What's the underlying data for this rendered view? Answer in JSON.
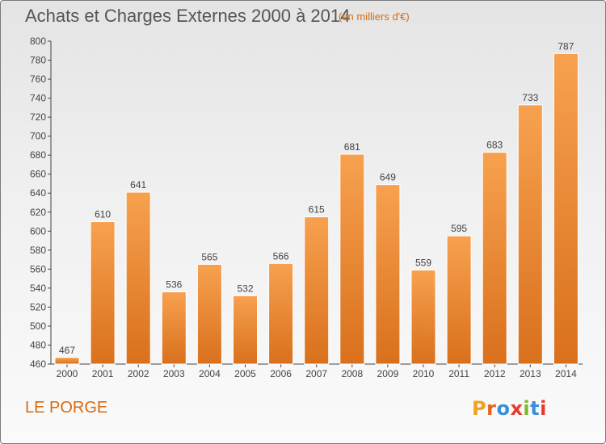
{
  "header": {
    "title": "Achats et Charges Externes 2000 à 2014",
    "unit": "(en milliers d'€)"
  },
  "footer": {
    "commune": "LE PORGE",
    "logo_text": "Proxiti"
  },
  "colors": {
    "bar_top": "#f7a14f",
    "bar_bottom": "#d9701c",
    "accent": "#d96a0d",
    "axis": "#444444"
  },
  "chart_data": {
    "type": "bar",
    "title": "Achats et Charges Externes 2000 à 2014",
    "subtitle": "(en milliers d'€)",
    "xlabel": "",
    "ylabel": "",
    "categories": [
      "2000",
      "2001",
      "2002",
      "2003",
      "2004",
      "2005",
      "2006",
      "2007",
      "2008",
      "2009",
      "2010",
      "2011",
      "2012",
      "2013",
      "2014"
    ],
    "values": [
      467,
      610,
      641,
      536,
      565,
      532,
      566,
      615,
      681,
      649,
      559,
      595,
      683,
      733,
      787
    ],
    "ylim": [
      460,
      800
    ],
    "yticks": [
      460,
      480,
      500,
      520,
      540,
      560,
      580,
      600,
      620,
      640,
      660,
      680,
      700,
      720,
      740,
      760,
      780,
      800
    ],
    "grid": false,
    "legend": "none"
  }
}
